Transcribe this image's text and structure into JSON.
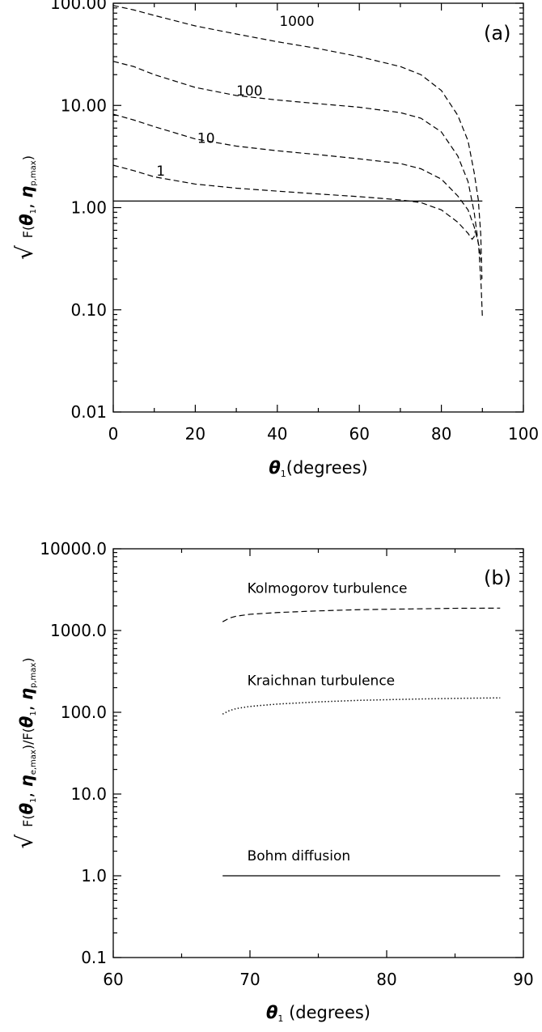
{
  "chart_data": [
    {
      "type": "line",
      "panel_label": "(a)",
      "xlabel": "θ₁(degrees)",
      "ylabel": "√ F(θ₁, η_p,max)",
      "ylabel_parts": {
        "sqrt": "√",
        "f": "F(",
        "theta": "θ",
        "theta_sub": "1",
        "comma": ", ",
        "eta": "η",
        "eta_sub": "p,max",
        "close": ")"
      },
      "xlabel_parts": {
        "theta": "θ",
        "theta_sub": "1",
        "rest": "(degrees)"
      },
      "xlim": [
        0,
        100
      ],
      "ylim": [
        0.01,
        100
      ],
      "yscale": "log",
      "grid": false,
      "x_ticks": [
        0,
        20,
        40,
        60,
        80,
        100
      ],
      "x_tick_labels": [
        "0",
        "20",
        "40",
        "60",
        "80",
        "100"
      ],
      "y_ticks": [
        0.01,
        0.1,
        1,
        10,
        100
      ],
      "y_tick_labels": [
        "0.01",
        "0.10",
        "1.00",
        "10.00",
        "100.00"
      ],
      "series": [
        {
          "label": "1000",
          "style": "dashed",
          "label_at": {
            "x": 40.5,
            "y": 60
          },
          "points": [
            [
              0,
              95
            ],
            [
              5,
              86
            ],
            [
              10,
              76
            ],
            [
              20,
              60
            ],
            [
              30,
              50
            ],
            [
              40,
              42
            ],
            [
              50,
              36
            ],
            [
              60,
              30
            ],
            [
              70,
              24
            ],
            [
              75,
              20
            ],
            [
              80,
              14
            ],
            [
              84,
              8
            ],
            [
              86.5,
              4.5
            ],
            [
              88,
              2.2
            ],
            [
              89,
              1.2
            ],
            [
              89.6,
              0.55
            ],
            [
              89.9,
              0.2
            ]
          ]
        },
        {
          "label": "100",
          "style": "dashed",
          "label_at": {
            "x": 30,
            "y": 12.5
          },
          "points": [
            [
              0,
              27
            ],
            [
              5,
              24
            ],
            [
              10,
              20
            ],
            [
              20,
              15
            ],
            [
              30,
              12.5
            ],
            [
              40,
              11.3
            ],
            [
              50,
              10.4
            ],
            [
              60,
              9.6
            ],
            [
              70,
              8.5
            ],
            [
              75,
              7.5
            ],
            [
              80,
              5.5
            ],
            [
              84,
              3.2
            ],
            [
              86.5,
              1.8
            ],
            [
              88,
              0.9
            ],
            [
              89.1,
              0.42
            ],
            [
              89.7,
              0.17
            ],
            [
              90,
              0.085
            ]
          ]
        },
        {
          "label": "10",
          "style": "dashed",
          "label_at": {
            "x": 20.5,
            "y": 4.3
          },
          "points": [
            [
              0,
              8.2
            ],
            [
              5,
              7.2
            ],
            [
              10,
              6.2
            ],
            [
              20,
              4.7
            ],
            [
              30,
              4.0
            ],
            [
              40,
              3.6
            ],
            [
              50,
              3.3
            ],
            [
              60,
              3.0
            ],
            [
              70,
              2.7
            ],
            [
              75,
              2.4
            ],
            [
              80,
              1.9
            ],
            [
              84,
              1.3
            ],
            [
              86.5,
              0.95
            ],
            [
              88,
              0.65
            ],
            [
              89.2,
              0.42
            ],
            [
              89.7,
              0.3
            ]
          ]
        },
        {
          "label": "1",
          "style": "dashed",
          "label_at": {
            "x": 10.5,
            "y": 2.05
          },
          "points": [
            [
              0,
              2.6
            ],
            [
              5,
              2.3
            ],
            [
              10,
              2.0
            ],
            [
              20,
              1.7
            ],
            [
              30,
              1.55
            ],
            [
              40,
              1.45
            ],
            [
              50,
              1.36
            ],
            [
              60,
              1.28
            ],
            [
              70,
              1.19
            ],
            [
              75,
              1.12
            ],
            [
              80,
              0.95
            ],
            [
              84,
              0.72
            ],
            [
              86.5,
              0.56
            ],
            [
              87.5,
              0.49
            ],
            [
              88,
              0.52
            ],
            [
              88.3,
              0.6
            ]
          ]
        },
        {
          "label": "",
          "style": "solid",
          "points": [
            [
              0,
              1.16
            ],
            [
              90,
              1.16
            ]
          ]
        }
      ]
    },
    {
      "type": "line",
      "panel_label": "(b)",
      "xlabel": "θ₁ (degrees)",
      "ylabel": "√ F(θ₁, η_e,max)/F(θ₁, η_p,max)",
      "ylabel_parts": {
        "sqrt": "√",
        "f": "F(",
        "theta": "θ",
        "theta_sub": "1",
        "comma": ", ",
        "eta": "η",
        "eta_sub": "e,max",
        "mid": ")/F(",
        "theta2": "θ",
        "theta2_sub": "1",
        "comma2": ", ",
        "eta2": "η",
        "eta2_sub": "p,max",
        "close": ")"
      },
      "xlabel_parts": {
        "theta": "θ",
        "theta_sub": "1",
        "rest": " (degrees)"
      },
      "xlim": [
        60,
        90
      ],
      "ylim": [
        0.1,
        10000
      ],
      "yscale": "log",
      "grid": false,
      "x_ticks": [
        60,
        70,
        80,
        90
      ],
      "x_tick_labels": [
        "60",
        "70",
        "80",
        "90"
      ],
      "y_ticks": [
        0.1,
        1,
        10,
        100,
        1000,
        10000
      ],
      "y_tick_labels": [
        "0.1",
        "1.0",
        "10.0",
        "100.0",
        "1000.0",
        "10000.0"
      ],
      "series": [
        {
          "label": "Kolmogorov turbulence",
          "style": "dashed",
          "label_at": {
            "x": 69.8,
            "y": 2900
          },
          "points": [
            [
              68,
              1280
            ],
            [
              68.5,
              1420
            ],
            [
              69,
              1500
            ],
            [
              70,
              1580
            ],
            [
              72,
              1660
            ],
            [
              75,
              1740
            ],
            [
              78,
              1800
            ],
            [
              82,
              1840
            ],
            [
              85,
              1870
            ],
            [
              88.3,
              1880
            ]
          ]
        },
        {
          "label": "Kraichnan turbulence",
          "style": "dotted",
          "label_at": {
            "x": 69.8,
            "y": 215
          },
          "points": [
            [
              68,
              95
            ],
            [
              68.5,
              105
            ],
            [
              69,
              111
            ],
            [
              70,
              118
            ],
            [
              72,
              126
            ],
            [
              75,
              134
            ],
            [
              78,
              140
            ],
            [
              82,
              145
            ],
            [
              85,
              148
            ],
            [
              88.3,
              150
            ]
          ]
        },
        {
          "label": "Bohm diffusion",
          "style": "solid",
          "label_at": {
            "x": 69.8,
            "y": 1.55
          },
          "points": [
            [
              68,
              1.0
            ],
            [
              88.3,
              1.0
            ]
          ]
        }
      ]
    }
  ]
}
